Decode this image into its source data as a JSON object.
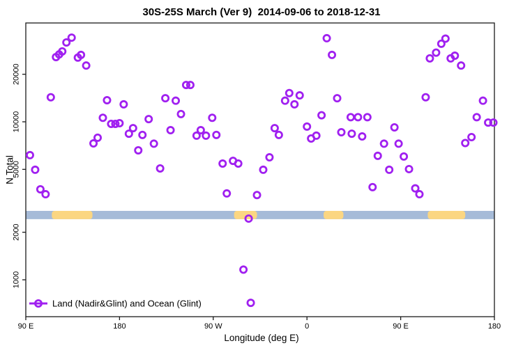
{
  "chart_data": {
    "type": "scatter",
    "title": "30S-25S March (Ver 9)  2014-09-06 to 2018-12-31",
    "xlabel": "Longitude (deg E)",
    "ylabel": "N Total",
    "yscale": "log",
    "ylim": [
      580,
      42000
    ],
    "xlim_axis_degrees": [
      90,
      540
    ],
    "grid": false,
    "xticks": [
      {
        "pos": 90,
        "label": "90 E"
      },
      {
        "pos": 180,
        "label": "180"
      },
      {
        "pos": 270,
        "label": "90 W"
      },
      {
        "pos": 360,
        "label": "0"
      },
      {
        "pos": 450,
        "label": "90 E"
      },
      {
        "pos": 540,
        "label": "180"
      }
    ],
    "yticks": [
      1000,
      2000,
      5000,
      10000,
      20000
    ],
    "legend": {
      "label": "Land (Nadir&Glint) and Ocean (Glint)",
      "position": "bottom-left"
    },
    "marker": {
      "shape": "open-circle",
      "color": "#A020F0"
    },
    "surface_band": {
      "ocean_color": "#A6BBD8",
      "land_color": "#FBD682",
      "value_range": [
        2420,
        2730
      ],
      "land_segments_axis_degrees": [
        [
          115,
          154
        ],
        [
          290,
          312
        ],
        [
          376,
          395
        ],
        [
          476,
          512
        ]
      ]
    },
    "points": [
      [
        94,
        6150
      ],
      [
        99,
        4970
      ],
      [
        104,
        3740
      ],
      [
        109,
        3480
      ],
      [
        114,
        14300
      ],
      [
        119,
        25700
      ],
      [
        122,
        26700
      ],
      [
        125,
        27900
      ],
      [
        129,
        31800
      ],
      [
        134,
        34100
      ],
      [
        140,
        25500
      ],
      [
        143,
        26500
      ],
      [
        148,
        22700
      ],
      [
        155,
        7300
      ],
      [
        159,
        7930
      ],
      [
        164,
        10600
      ],
      [
        168,
        13700
      ],
      [
        172,
        9700
      ],
      [
        176,
        9700
      ],
      [
        180,
        9800
      ],
      [
        184,
        12900
      ],
      [
        189,
        8410
      ],
      [
        193,
        9120
      ],
      [
        198,
        6600
      ],
      [
        202,
        8260
      ],
      [
        208,
        10400
      ],
      [
        213,
        7270
      ],
      [
        219,
        5070
      ],
      [
        224,
        14100
      ],
      [
        229,
        8850
      ],
      [
        234,
        13600
      ],
      [
        239,
        11200
      ],
      [
        244,
        17100
      ],
      [
        248,
        17100
      ],
      [
        254,
        8170
      ],
      [
        258,
        8850
      ],
      [
        263,
        8170
      ],
      [
        269,
        10600
      ],
      [
        273,
        8260
      ],
      [
        279,
        5440
      ],
      [
        283,
        3520
      ],
      [
        289,
        5660
      ],
      [
        294,
        5440
      ],
      [
        299,
        1160
      ],
      [
        304,
        2440
      ],
      [
        306,
        715
      ],
      [
        312,
        3440
      ],
      [
        318,
        4970
      ],
      [
        324,
        5960
      ],
      [
        329,
        9120
      ],
      [
        333,
        8260
      ],
      [
        339,
        13600
      ],
      [
        343,
        15200
      ],
      [
        348,
        12900
      ],
      [
        353,
        14700
      ],
      [
        360,
        9330
      ],
      [
        364,
        7840
      ],
      [
        369,
        8170
      ],
      [
        374,
        11000
      ],
      [
        379,
        33800
      ],
      [
        384,
        26500
      ],
      [
        389,
        14100
      ],
      [
        393,
        8590
      ],
      [
        402,
        10700
      ],
      [
        403,
        8410
      ],
      [
        409,
        10700
      ],
      [
        413,
        8080
      ],
      [
        418,
        10700
      ],
      [
        423,
        3860
      ],
      [
        428,
        6090
      ],
      [
        434,
        7270
      ],
      [
        439,
        4970
      ],
      [
        444,
        9220
      ],
      [
        448,
        7270
      ],
      [
        453,
        6030
      ],
      [
        458,
        5020
      ],
      [
        464,
        3790
      ],
      [
        468,
        3480
      ],
      [
        474,
        14300
      ],
      [
        478,
        25200
      ],
      [
        484,
        27400
      ],
      [
        489,
        31200
      ],
      [
        493,
        33600
      ],
      [
        498,
        25200
      ],
      [
        502,
        26200
      ],
      [
        508,
        22700
      ],
      [
        512,
        7340
      ],
      [
        518,
        8000
      ],
      [
        523,
        10700
      ],
      [
        529,
        13600
      ],
      [
        534,
        9890
      ],
      [
        539,
        9890
      ]
    ]
  }
}
